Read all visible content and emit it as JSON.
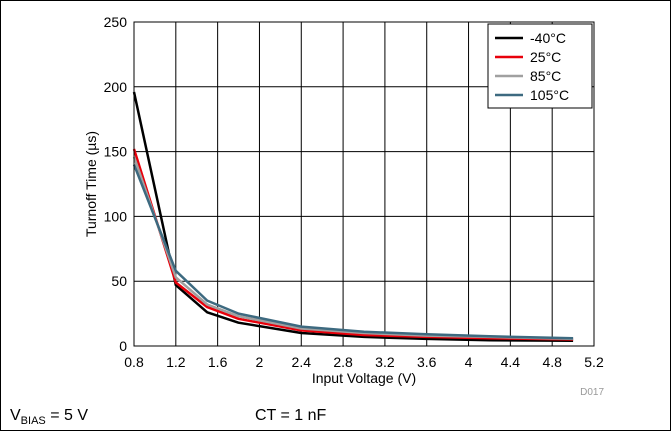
{
  "chart_data": {
    "type": "line",
    "xlabel": "Input Voltage (V)",
    "ylabel": "Turnoff Time (µs)",
    "xlim": [
      0.8,
      5.2
    ],
    "ylim": [
      0,
      250
    ],
    "xticks": [
      "0.8",
      "1.2",
      "1.6",
      "2",
      "2.4",
      "2.8",
      "3.2",
      "3.6",
      "4",
      "4.4",
      "4.8",
      "5.2"
    ],
    "yticks": [
      "0",
      "50",
      "100",
      "150",
      "200",
      "250"
    ],
    "grid": true,
    "legend_position": "top-right",
    "series": [
      {
        "name": "-40°C",
        "color": "#000000",
        "x": [
          0.8,
          1.2,
          1.5,
          1.8,
          2.4,
          3.0,
          3.6,
          4.2,
          5.0
        ],
        "y": [
          196,
          47,
          26,
          18,
          10,
          7,
          5.5,
          4.5,
          4
        ]
      },
      {
        "name": "25°C",
        "color": "#e8000b",
        "x": [
          0.8,
          1.2,
          1.5,
          1.8,
          2.4,
          3.0,
          3.6,
          4.2,
          5.0
        ],
        "y": [
          152,
          49,
          30,
          21,
          12,
          8.5,
          7,
          6,
          5
        ]
      },
      {
        "name": "85°C",
        "color": "#a0a0a0",
        "x": [
          0.8,
          1.2,
          1.5,
          1.8,
          2.4,
          3.0,
          3.6,
          4.2,
          5.0
        ],
        "y": [
          146,
          53,
          32,
          23,
          13.5,
          10,
          8,
          7,
          5.5
        ]
      },
      {
        "name": "105°C",
        "color": "#3d6a80",
        "x": [
          0.8,
          1.2,
          1.5,
          1.8,
          2.4,
          3.0,
          3.6,
          4.2,
          5.0
        ],
        "y": [
          140,
          58,
          35,
          25,
          15,
          11,
          9,
          7.5,
          6
        ]
      }
    ],
    "annotation": "D017"
  },
  "caption": {
    "vbias_main": "V",
    "vbias_sub": "BIAS",
    "vbias_value": " = 5 V",
    "ct": "CT = 1 nF"
  }
}
